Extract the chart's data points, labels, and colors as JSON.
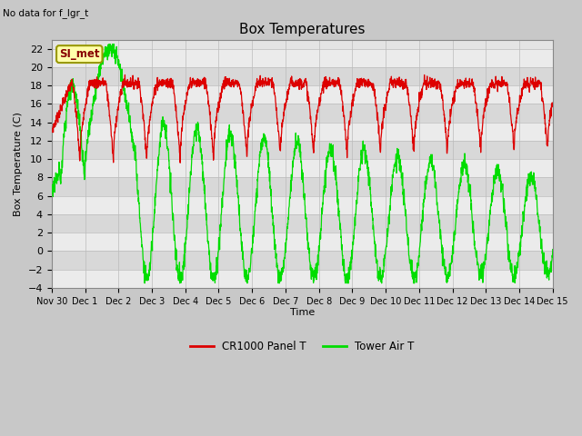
{
  "title": "Box Temperatures",
  "ylabel": "Box Temperature (C)",
  "xlabel": "Time",
  "no_data_label": "No data for f_lgr_t",
  "si_met_label": "SI_met",
  "ylim": [
    -4,
    23
  ],
  "yticks": [
    -4,
    -2,
    0,
    2,
    4,
    6,
    8,
    10,
    12,
    14,
    16,
    18,
    20,
    22
  ],
  "bg_color": "#c8c8c8",
  "plot_bg": "#e4e4e4",
  "stripe_light": "#ebebeb",
  "stripe_dark": "#d8d8d8",
  "red_color": "#dd0000",
  "green_color": "#00dd00",
  "title_fontsize": 11,
  "label_fontsize": 8,
  "tick_fontsize": 8,
  "xtick_labels": [
    "Nov 30",
    "Dec 1",
    "Dec 2",
    "Dec 3",
    "Dec 4",
    "Dec 5",
    "Dec 6",
    "Dec 7",
    "Dec 8",
    "Dec 9",
    "Dec 10",
    "Dec 11",
    "Dec 12",
    "Dec 13",
    "Dec 14",
    "Dec 15"
  ],
  "legend_red": "CR1000 Panel T",
  "legend_green": "Tower Air T"
}
